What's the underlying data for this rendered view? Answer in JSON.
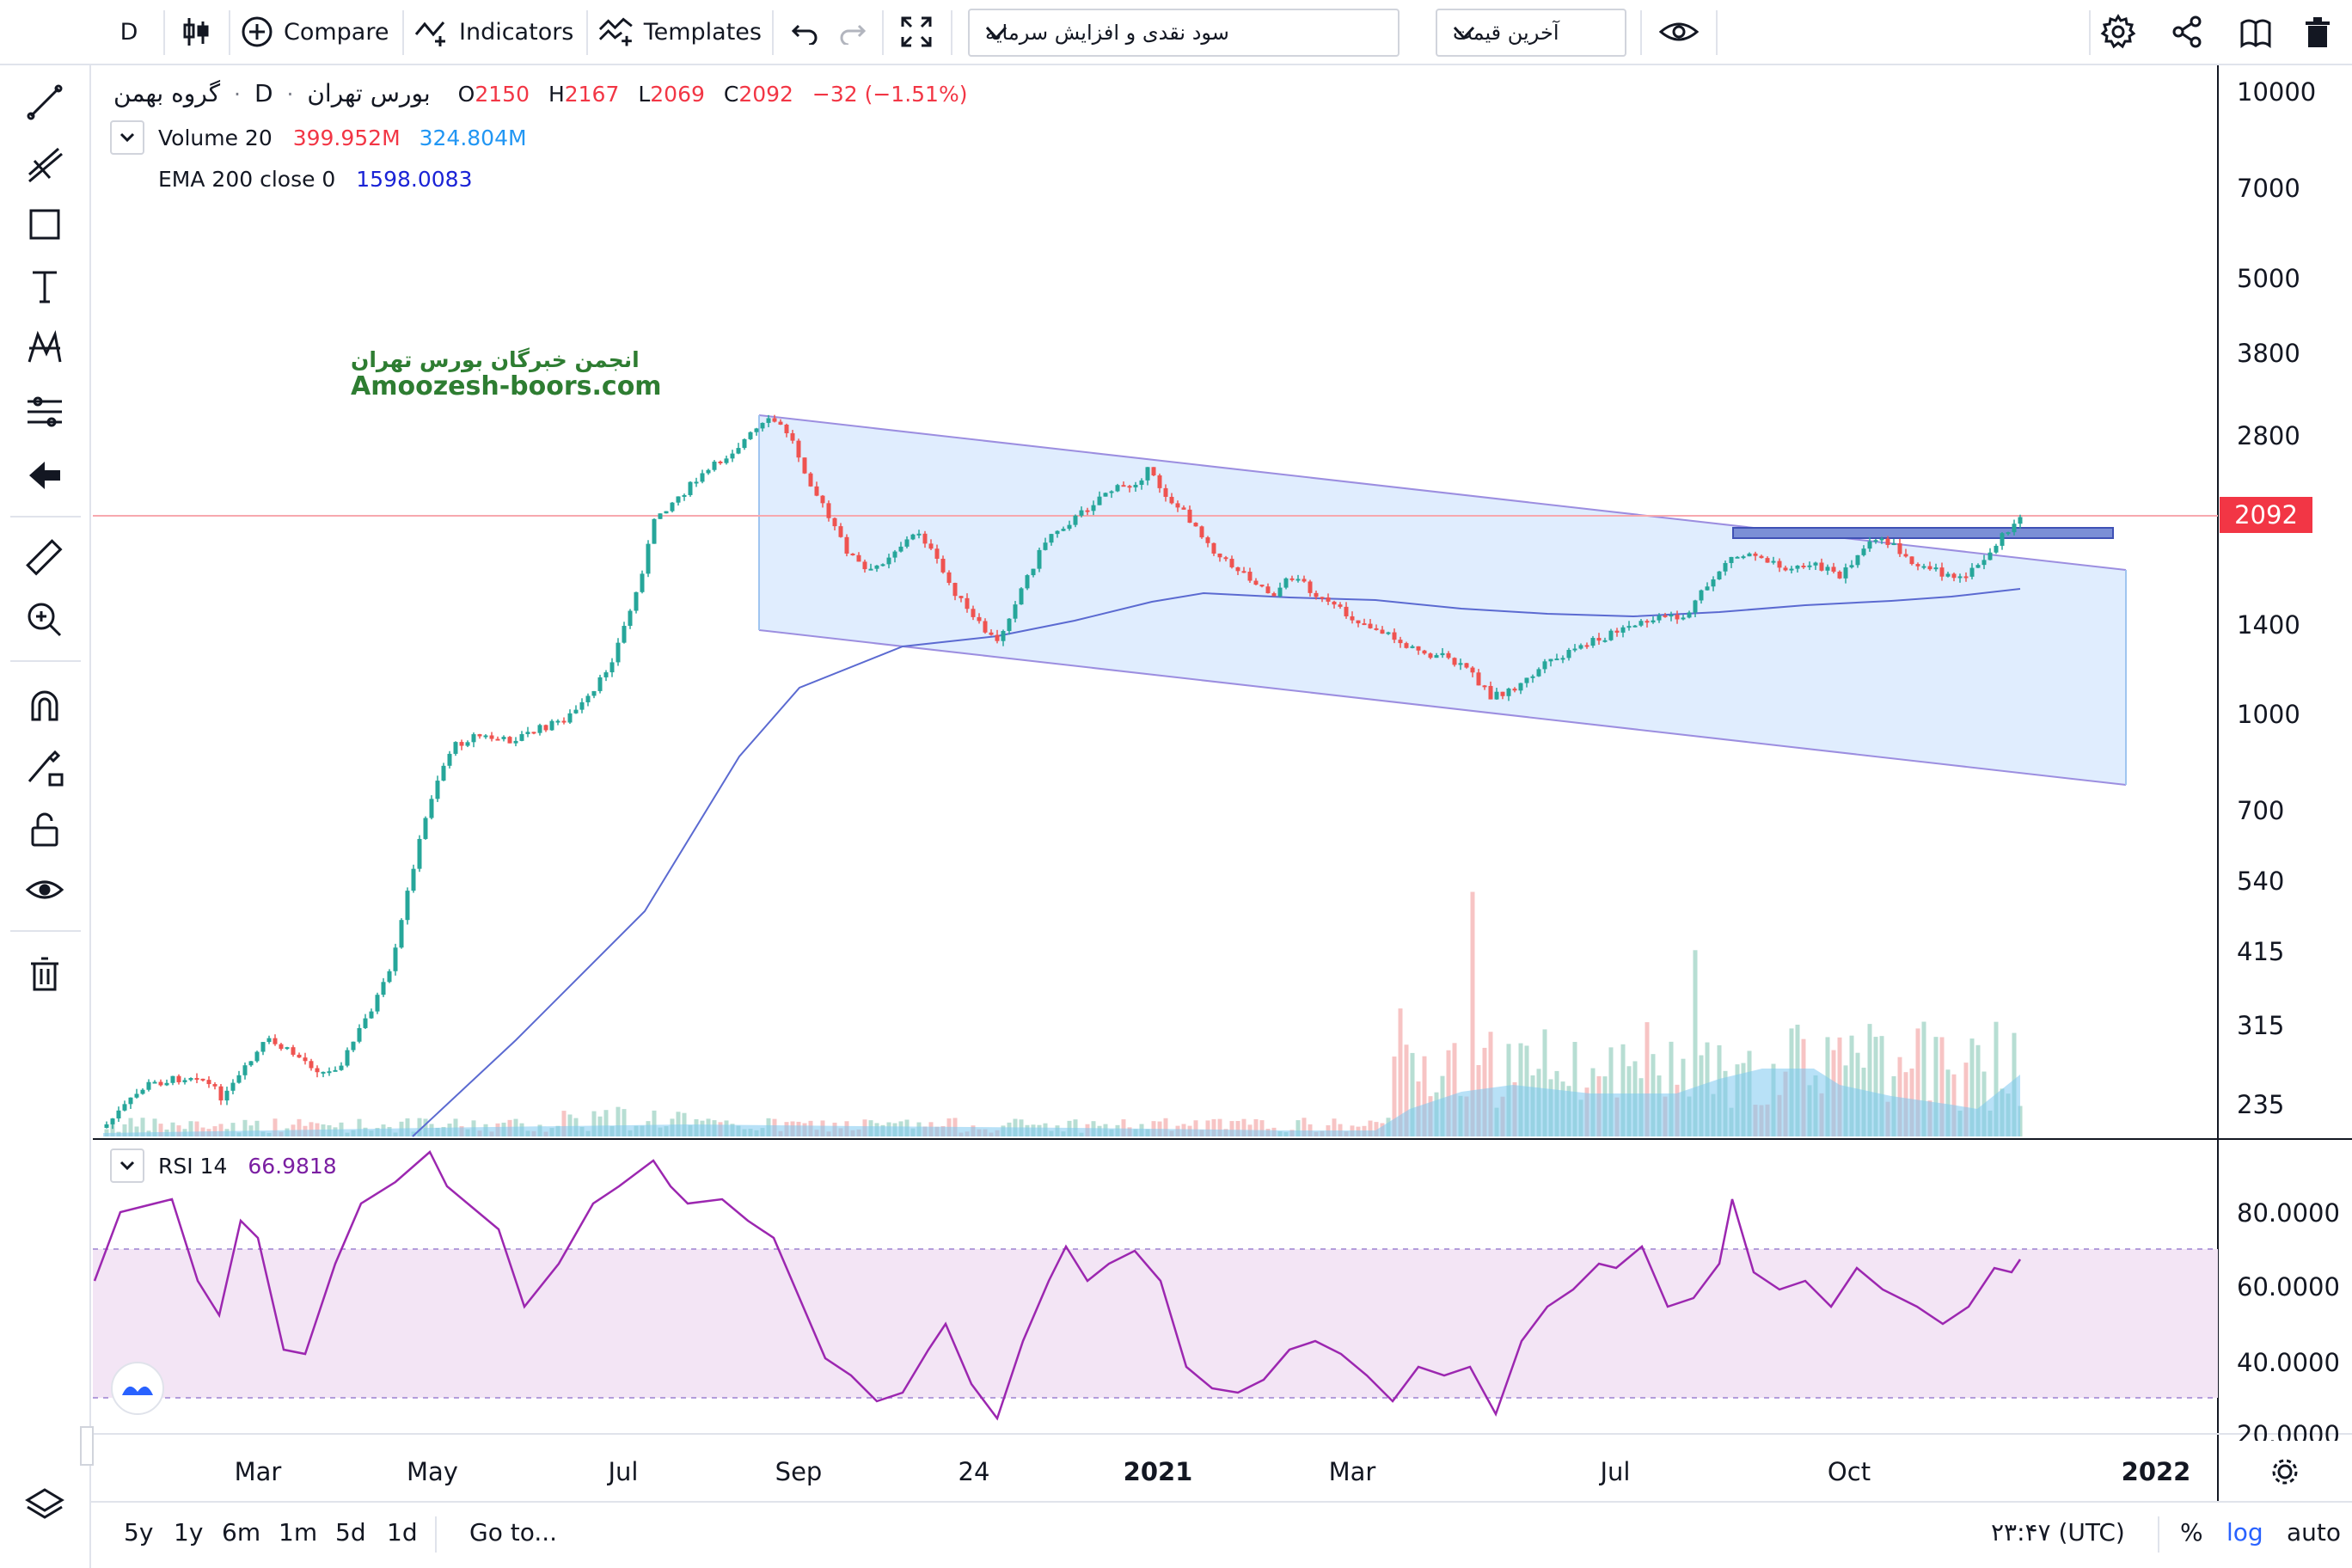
{
  "toolbar": {
    "interval": "D",
    "compare_label": "Compare",
    "indicators_label": "Indicators",
    "templates_label": "Templates",
    "dropdown1": "سود نقدی و افزایش سرمایه",
    "dropdown2": "آخرین قیمت"
  },
  "symbol": {
    "name": "گروه بهمن",
    "interval": "D",
    "exchange": "بورس تهران",
    "o_label": "O",
    "o_val": "2150",
    "h_label": "H",
    "h_val": "2167",
    "l_label": "L",
    "l_val": "2069",
    "c_label": "C",
    "c_val": "2092",
    "change": "−32 (−1.51%)"
  },
  "volume_legend": {
    "label": "Volume 20",
    "v1": "399.952M",
    "v2": "324.804M"
  },
  "ema_legend": {
    "label": "EMA 200 close 0",
    "value": "1598.0083"
  },
  "rsi_legend": {
    "label": "RSI 14",
    "value": "66.9818"
  },
  "watermark": {
    "line1": "انجمن خبرگان بورس تهران",
    "line2": "Amoozesh-boors.com"
  },
  "price_axis": [
    "10000",
    "7000",
    "5000",
    "3800",
    "2800",
    "2092",
    "1400",
    "1000",
    "700",
    "540",
    "415",
    "315",
    "235"
  ],
  "current_price": "2092",
  "rsi_axis": [
    "80.0000",
    "60.0000",
    "40.0000",
    "20.0000"
  ],
  "time_axis": [
    "Mar",
    "May",
    "Jul",
    "Sep",
    "24",
    "2021",
    "Mar",
    "Jul",
    "Oct",
    "2022"
  ],
  "bottom": {
    "ranges": [
      "5y",
      "1y",
      "6m",
      "1m",
      "5d",
      "1d"
    ],
    "goto": "Go to...",
    "clock": "۲۳:۴۷ (UTC)",
    "percent": "%",
    "log": "log",
    "auto": "auto"
  },
  "colors": {
    "up": "#26a69a",
    "down": "#ef5350",
    "ema": "#5b6ad1",
    "rsi": "#9c27b0",
    "channel": "#dbeafe",
    "accent": "#2962ff",
    "price_tag": "#f23645"
  }
}
